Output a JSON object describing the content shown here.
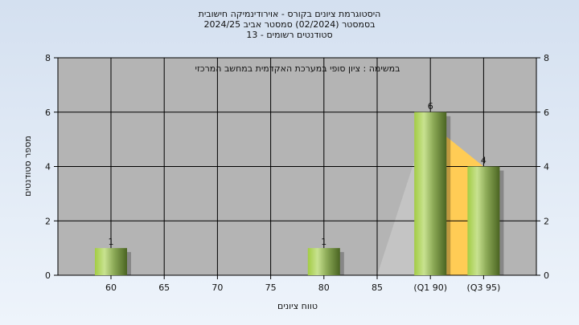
{
  "chart_data": {
    "type": "bar",
    "title": [
      "היסטוגרמת ציונים בקורס - אוירודינמיקה חישובית",
      "בסמסטר  (02/2024)  סמסטר אביב 2024/25",
      "סטודנטים רשומים - 13"
    ],
    "subtitle": "במשימה : ציון סופי במערכת האקדמית במחשב המרכזי",
    "xlabel": "טווח ציונים",
    "ylabel": "מספר סטודנטים",
    "categories": [
      "60",
      "65",
      "70",
      "75",
      "80",
      "85",
      "(Q1 90)",
      "(Q3 95)"
    ],
    "values": [
      1,
      0,
      0,
      0,
      1,
      0,
      6,
      4
    ],
    "ylim": [
      0,
      8
    ],
    "yticks": [
      0,
      2,
      4,
      6,
      8
    ],
    "grid": true,
    "colors": {
      "bar": "#9fc25a",
      "plot_bg": "#b4b4b4",
      "area_q1": "#c4c4c4",
      "area_q3": "#ffcc55"
    }
  }
}
